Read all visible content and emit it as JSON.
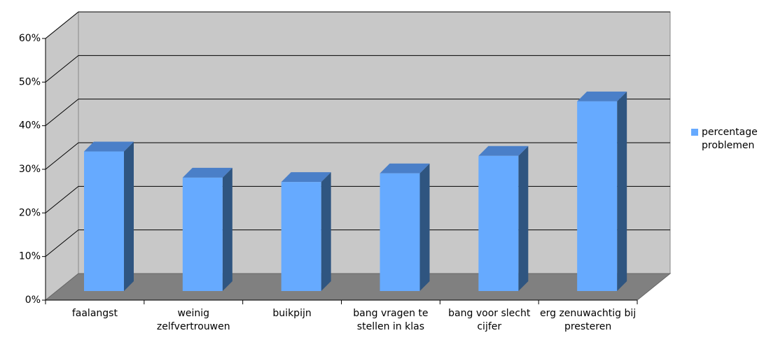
{
  "chart_data": {
    "type": "bar3d",
    "categories": [
      "faalangst",
      "weinig zelfvertrouwen",
      "buikpijn",
      "bang vragen te stellen in klas",
      "bang voor slecht cijfer",
      "erg zenuwachtig bij presteren"
    ],
    "series": [
      {
        "name": "percentage problemen",
        "color": "#66aaff",
        "values": [
          32,
          26,
          25,
          27,
          31,
          43.5
        ]
      }
    ],
    "ylim": [
      0,
      60
    ],
    "yticks": [
      {
        "value": 0,
        "label": "0%"
      },
      {
        "value": 10,
        "label": "10%"
      },
      {
        "value": 20,
        "label": "20%"
      },
      {
        "value": 30,
        "label": "30%"
      },
      {
        "value": 40,
        "label": "40%"
      },
      {
        "value": 50,
        "label": "50%"
      },
      {
        "value": 60,
        "label": "60%"
      }
    ],
    "grid": true,
    "legend": "right"
  }
}
